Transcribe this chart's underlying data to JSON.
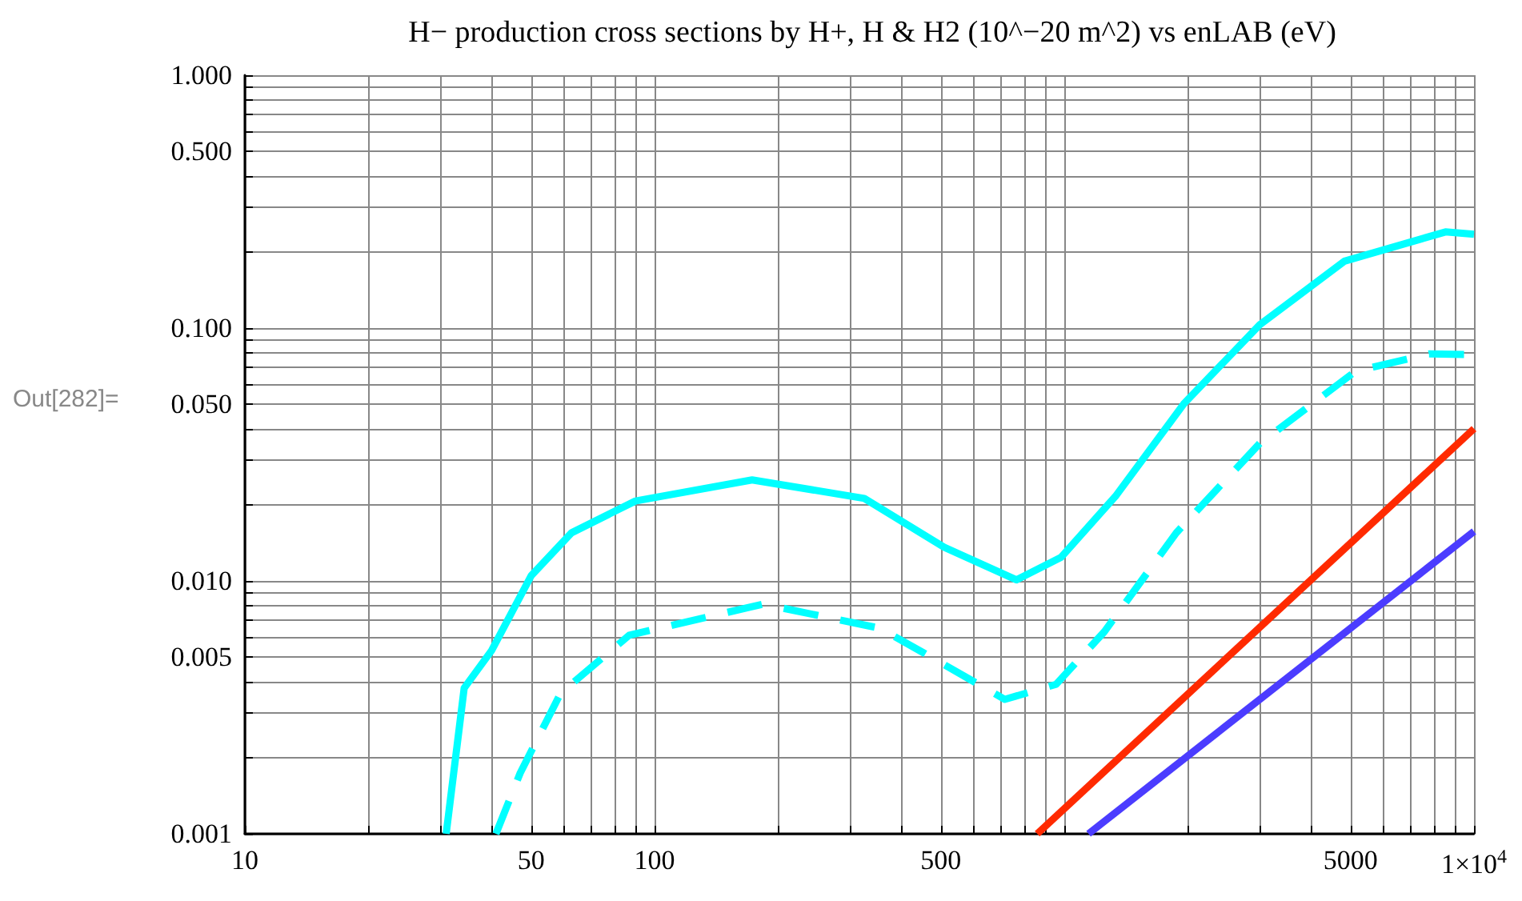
{
  "chart_data": {
    "type": "line",
    "title": "H− production cross sections by H+, H & H2 (10^−20 m^2) vs enLAB (eV)",
    "annotations": [
      "Out[282]="
    ],
    "log": "xy",
    "grid": true,
    "marker": "none",
    "xlim": [
      10,
      10000
    ],
    "ylim": [
      0.001,
      1
    ],
    "xticks": [
      10,
      {
        "value": 20,
        "label": null
      },
      {
        "value": 30,
        "label": null
      },
      {
        "value": 40,
        "label": null
      },
      50,
      {
        "value": 60,
        "label": null
      },
      {
        "value": 70,
        "label": null
      },
      {
        "value": 80,
        "label": null
      },
      {
        "value": 90,
        "label": null
      },
      100,
      {
        "value": 200,
        "label": null
      },
      {
        "value": 300,
        "label": null
      },
      {
        "value": 400,
        "label": null
      },
      500,
      {
        "value": 600,
        "label": null
      },
      {
        "value": 700,
        "label": null
      },
      {
        "value": 800,
        "label": null
      },
      {
        "value": 900,
        "label": null
      },
      {
        "value": 1000,
        "label": null
      },
      {
        "value": 2000,
        "label": null
      },
      {
        "value": 3000,
        "label": null
      },
      {
        "value": 4000,
        "label": null
      },
      5000,
      {
        "value": 6000,
        "label": null
      },
      {
        "value": 7000,
        "label": null
      },
      {
        "value": 8000,
        "label": null
      },
      {
        "value": 9000,
        "label": null
      },
      {
        "value": 10000,
        "label": "1×10$^{4}$"
      }
    ],
    "yticks": [
      0.001,
      {
        "value": 0.002,
        "label": null
      },
      {
        "value": 0.003,
        "label": null
      },
      {
        "value": 0.004,
        "label": null
      },
      0.005,
      {
        "value": 0.006,
        "label": null
      },
      {
        "value": 0.007,
        "label": null
      },
      {
        "value": 0.008,
        "label": null
      },
      {
        "value": 0.009,
        "label": null
      },
      {
        "value": 0.01,
        "label": "0.010"
      },
      {
        "value": 0.02,
        "label": null
      },
      {
        "value": 0.03,
        "label": null
      },
      {
        "value": 0.04,
        "label": null
      },
      {
        "value": 0.05,
        "label": "0.050"
      },
      {
        "value": 0.06,
        "label": null
      },
      {
        "value": 0.07,
        "label": null
      },
      {
        "value": 0.08,
        "label": null
      },
      {
        "value": 0.09,
        "label": null
      },
      {
        "value": 0.1,
        "label": "0.100"
      },
      {
        "value": 0.2,
        "label": null
      },
      {
        "value": 0.3,
        "label": null
      },
      {
        "value": 0.4,
        "label": null
      },
      {
        "value": 0.5,
        "label": "0.500"
      },
      {
        "value": 0.6,
        "label": null
      },
      {
        "value": 0.7,
        "label": null
      },
      {
        "value": 0.8,
        "label": null
      },
      {
        "value": 0.9,
        "label": null
      },
      {
        "value": 1,
        "label": "1.000"
      }
    ],
    "series": [
      {
        "color": "#00ffff",
        "line_style": "solid",
        "x": [
          31,
          34.3,
          40,
          50,
          62.7,
          89.8,
          173,
          325,
          509,
          764,
          982,
          1333,
          1964,
          2999,
          4830,
          8520,
          10000
        ],
        "values": [
          0.001,
          0.00377,
          0.0053,
          0.0105,
          0.0155,
          0.0207,
          0.0251,
          0.0212,
          0.0136,
          0.0101,
          0.0124,
          0.0216,
          0.0505,
          0.103,
          0.184,
          0.24,
          0.235
        ]
      },
      {
        "color": "#00ffff",
        "line_style": "dashed",
        "x": [
          41,
          47,
          59,
          86.7,
          184,
          355,
          453,
          716,
          955,
          1253,
          1877,
          3000,
          5140,
          7770,
          10000
        ],
        "values": [
          0.001,
          0.00174,
          0.0036,
          0.0061,
          0.0081,
          0.0065,
          0.0052,
          0.0034,
          0.0039,
          0.0063,
          0.0155,
          0.035,
          0.0675,
          0.079,
          0.0785
        ]
      },
      {
        "color": "#ff2a00",
        "line_style": "solid",
        "x": [
          859,
          10000
        ],
        "values": [
          0.001,
          0.04
        ]
      },
      {
        "color": "#4b3cff",
        "line_style": "solid",
        "x": [
          1146,
          10000
        ],
        "values": [
          0.001,
          0.0157
        ]
      }
    ]
  }
}
